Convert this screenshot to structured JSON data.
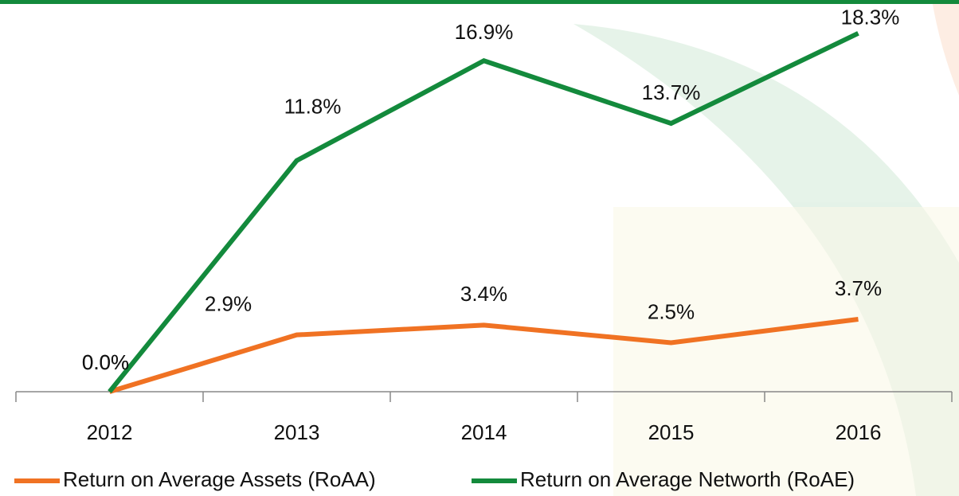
{
  "chart_data": {
    "type": "line",
    "categories": [
      "2012",
      "2013",
      "2014",
      "2015",
      "2016"
    ],
    "ylim": [
      0,
      20
    ],
    "series": [
      {
        "name": "Return on Average Assets (RoAA)",
        "color": "#f07223",
        "values": [
          0,
          2.9,
          3.4,
          2.5,
          3.7
        ],
        "value_labels": [
          "0.0%",
          "2.9%",
          "3.4%",
          "2.5%",
          "3.7%"
        ]
      },
      {
        "name": "Return on Average Networth (RoAE)",
        "color": "#138a3c",
        "values": [
          0,
          11.8,
          16.9,
          13.7,
          18.3
        ],
        "value_labels": [
          "0.0%",
          "11.8%",
          "16.9%",
          "13.7%",
          "18.3%"
        ]
      }
    ]
  }
}
